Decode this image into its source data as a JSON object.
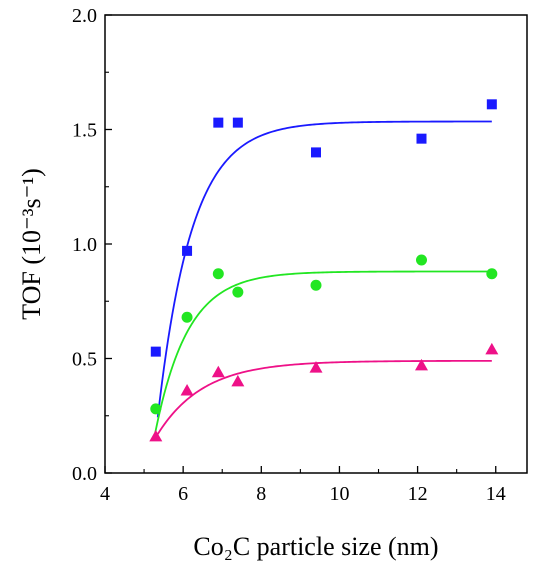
{
  "chart_data": {
    "type": "scatter",
    "xlabel": "Co₂C particle size (nm)",
    "ylabel": "TOF (10⁻³s⁻¹)",
    "xlim": [
      4,
      14.8
    ],
    "ylim": [
      0,
      2.0
    ],
    "xticks": [
      4,
      6,
      8,
      10,
      12,
      14
    ],
    "yticks": [
      0.0,
      0.5,
      1.0,
      1.5,
      2.0
    ],
    "x_tick_labels": [
      "4",
      "6",
      "8",
      "10",
      "12",
      "14"
    ],
    "y_tick_labels": [
      "0.0",
      "0.5",
      "1.0",
      "1.5",
      "2.0"
    ],
    "grid": false,
    "series": [
      {
        "color": "#1a1aff",
        "marker": "square",
        "points": [
          {
            "x": 5.3,
            "y": 0.53
          },
          {
            "x": 6.1,
            "y": 0.97
          },
          {
            "x": 6.9,
            "y": 1.53
          },
          {
            "x": 7.4,
            "y": 1.53
          },
          {
            "x": 9.4,
            "y": 1.4
          },
          {
            "x": 12.1,
            "y": 1.46
          },
          {
            "x": 13.9,
            "y": 1.61
          }
        ],
        "fit": {
          "plateau": 1.535,
          "x0": 5.2,
          "rate": 1.15,
          "x_range": [
            5.35,
            13.9
          ]
        }
      },
      {
        "color": "#22e622",
        "marker": "circle",
        "points": [
          {
            "x": 5.3,
            "y": 0.28
          },
          {
            "x": 6.1,
            "y": 0.68
          },
          {
            "x": 6.9,
            "y": 0.87
          },
          {
            "x": 7.4,
            "y": 0.79
          },
          {
            "x": 9.4,
            "y": 0.82
          },
          {
            "x": 12.1,
            "y": 0.93
          },
          {
            "x": 13.9,
            "y": 0.87
          }
        ],
        "fit": {
          "plateau": 0.88,
          "x0": 5.1,
          "rate": 1.2,
          "x_range": [
            5.25,
            13.9
          ]
        }
      },
      {
        "color": "#ee1188",
        "marker": "triangle",
        "points": [
          {
            "x": 5.3,
            "y": 0.16
          },
          {
            "x": 6.1,
            "y": 0.36
          },
          {
            "x": 6.9,
            "y": 0.44
          },
          {
            "x": 7.4,
            "y": 0.4
          },
          {
            "x": 9.4,
            "y": 0.46
          },
          {
            "x": 12.1,
            "y": 0.47
          },
          {
            "x": 13.9,
            "y": 0.54
          }
        ],
        "fit": {
          "plateau": 0.49,
          "x0": 4.85,
          "rate": 0.85,
          "x_range": [
            5.3,
            13.9
          ]
        }
      }
    ]
  }
}
